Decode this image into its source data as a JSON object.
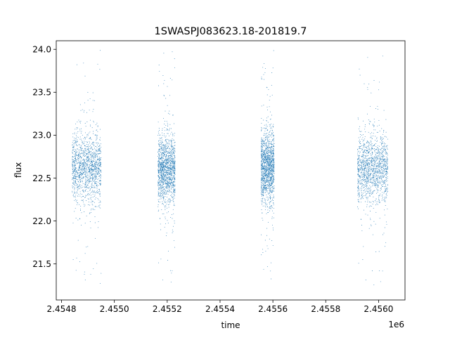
{
  "chart_data": {
    "type": "scatter",
    "title": "1SWASPJ083623.18-201819.7",
    "xlabel": "time",
    "ylabel": "flux",
    "x_offset_label": "1e6",
    "xlim": [
      2454780,
      2456100
    ],
    "ylim": [
      21.08,
      24.1
    ],
    "x_ticks": [
      2454800,
      2455000,
      2455200,
      2455400,
      2455600,
      2455800,
      2456000
    ],
    "x_tick_labels": [
      "2.4548",
      "2.4550",
      "2.4552",
      "2.4554",
      "2.4556",
      "2.4558",
      "2.4560"
    ],
    "y_ticks": [
      21.5,
      22.0,
      22.5,
      23.0,
      23.5,
      24.0
    ],
    "y_tick_labels": [
      "21.5",
      "22.0",
      "22.5",
      "23.0",
      "23.5",
      "24.0"
    ],
    "grid": false,
    "legend": "none",
    "marker_color": "#1f77b4",
    "series": [
      {
        "observing_seasons": [
          {
            "x_range": [
              2454840,
              2454950
            ],
            "y_center": 22.62,
            "y_spread": 0.2,
            "y_min": 21.25,
            "y_max": 24.0
          },
          {
            "x_range": [
              2455165,
              2455230
            ],
            "y_center": 22.6,
            "y_spread": 0.19,
            "y_min": 21.25,
            "y_max": 24.0
          },
          {
            "x_range": [
              2455555,
              2455605
            ],
            "y_center": 22.63,
            "y_spread": 0.2,
            "y_min": 21.3,
            "y_max": 24.0
          },
          {
            "x_range": [
              2455920,
              2456035
            ],
            "y_center": 22.62,
            "y_spread": 0.2,
            "y_min": 21.25,
            "y_max": 23.95
          }
        ]
      }
    ]
  }
}
